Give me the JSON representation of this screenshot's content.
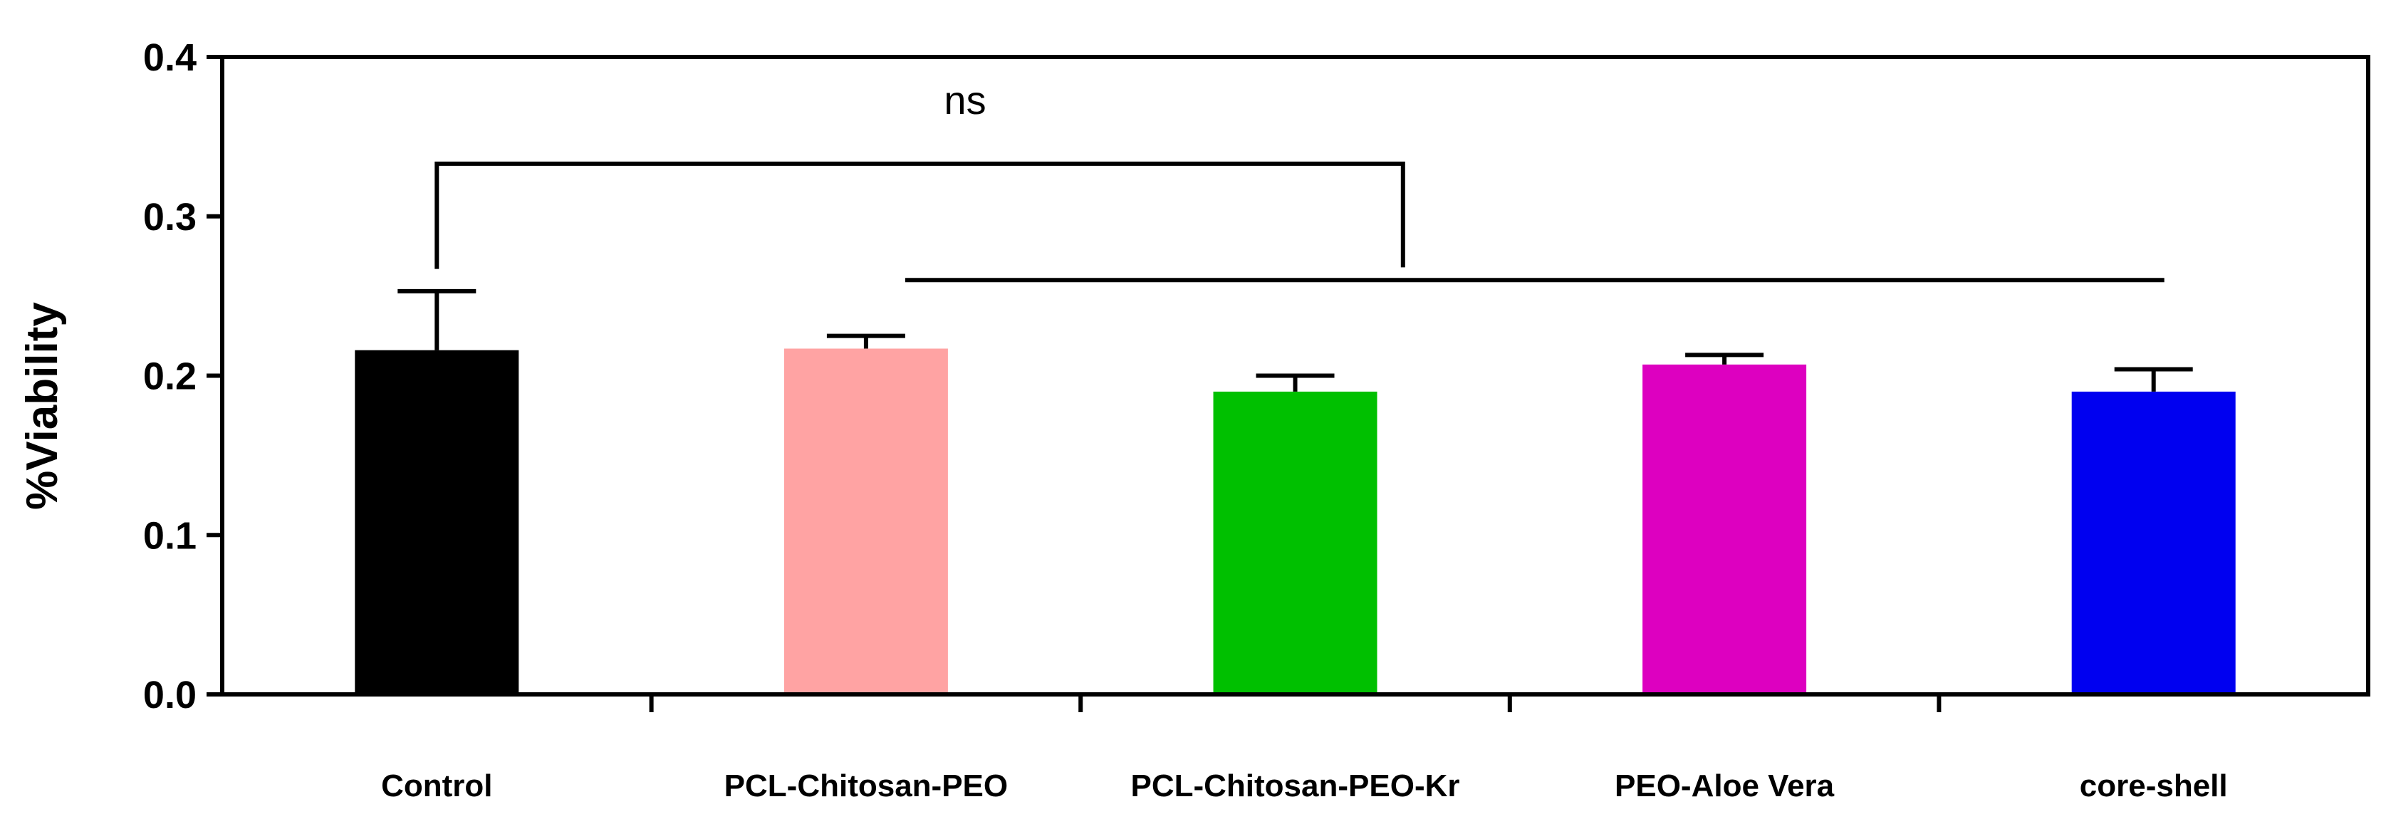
{
  "chart_data": {
    "type": "bar",
    "title": "",
    "xlabel": "",
    "ylabel": "%Viability",
    "ylim": [
      0,
      0.4
    ],
    "yticks": [
      "0.0",
      "0.1",
      "0.2",
      "0.3",
      "0.4"
    ],
    "categories": [
      "Control",
      "PCL-Chitosan-PEO",
      "PCL-Chitosan-PEO-Kr",
      "PEO-Aloe Vera",
      "core-shell"
    ],
    "values": [
      0.216,
      0.217,
      0.19,
      0.207,
      0.19
    ],
    "errors": [
      0.037,
      0.008,
      0.01,
      0.006,
      0.014
    ],
    "colors": [
      "#000000",
      "#ffa3a3",
      "#00c000",
      "#dd00c0",
      "#0000f0"
    ],
    "grid": false,
    "annotations": [
      {
        "text": "ns",
        "from_category": "Control",
        "to_range": [
          "PCL-Chitosan-PEO",
          "core-shell"
        ]
      }
    ]
  }
}
